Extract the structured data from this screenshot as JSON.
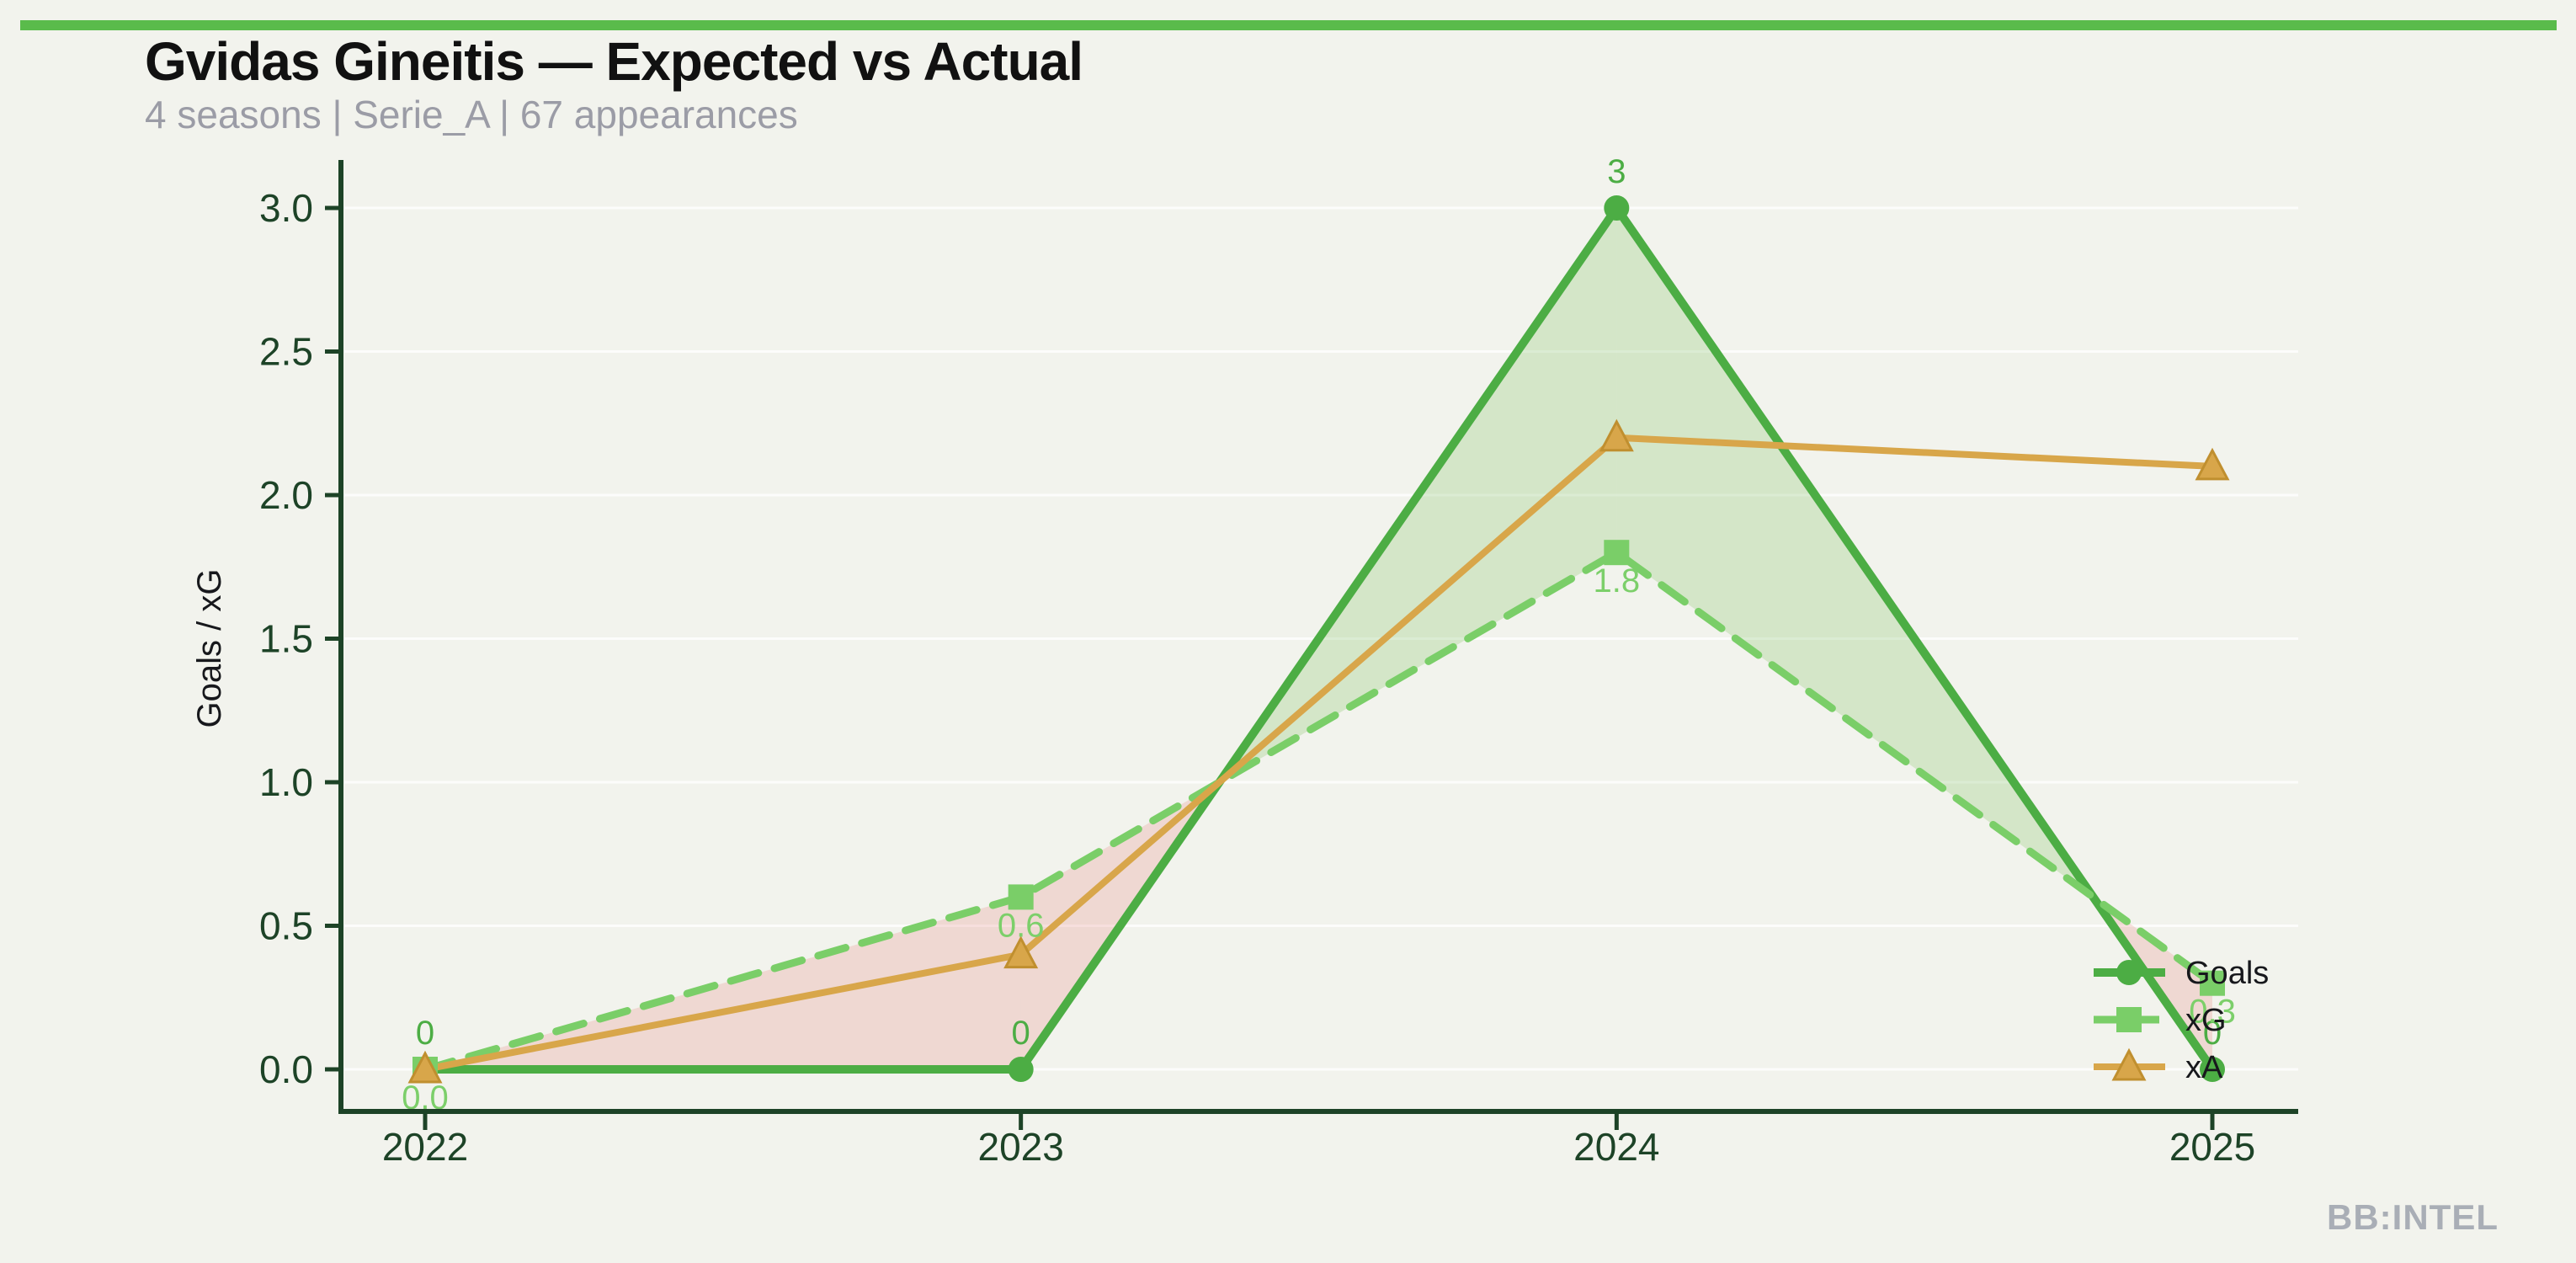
{
  "header": {
    "title": "Gvidas Gineitis — Expected vs Actual",
    "subtitle": "4 seasons | Serie_A | 67 appearances"
  },
  "watermark": "BB:INTEL",
  "colors": {
    "background": "#f2f3ed",
    "top_bar": "#5abb4b",
    "axis": "#1d4327",
    "tick_text": "#1d4327",
    "title_text": "#111111",
    "subtitle_text": "#9b9ca6",
    "watermark_text": "#a9aeb6",
    "gridline": "rgba(255,255,255,0.75)"
  },
  "chart_data": {
    "type": "line",
    "title": "Gvidas Gineitis — Expected vs Actual",
    "categories": [
      "2022",
      "2023",
      "2024",
      "2025"
    ],
    "series": [
      {
        "name": "Goals",
        "values": [
          0,
          0,
          3,
          0
        ],
        "labels": [
          "0",
          "0",
          "3",
          "0"
        ],
        "label_side": "above",
        "label_color": "#4cad44",
        "color": "#4cad44",
        "line": "solid",
        "width": 10,
        "marker": "circle"
      },
      {
        "name": "xG",
        "values": [
          0.0,
          0.6,
          1.8,
          0.3
        ],
        "labels": [
          "0.0",
          "0.6",
          "1.8",
          "0.3"
        ],
        "label_side": "below",
        "label_color": "#7ccf6a",
        "color": "#7ace68",
        "line": "dashed",
        "width": 9,
        "marker": "square"
      },
      {
        "name": "xA",
        "values": [
          0.0,
          0.4,
          2.2,
          2.1
        ],
        "labels": null,
        "label_side": null,
        "label_color": null,
        "color": "#d8a64a",
        "line": "solid",
        "width": 8,
        "marker": "triangle",
        "marker_edge": "#c08f2f"
      }
    ],
    "ylabel": "Goals / xG",
    "xlabel": "",
    "ylim": [
      0,
      3
    ],
    "yticks": [
      0.0,
      0.5,
      1.0,
      1.5,
      2.0,
      2.5,
      3.0
    ],
    "ytick_labels": [
      "0.0",
      "0.5",
      "1.0",
      "1.5",
      "2.0",
      "2.5",
      "3.0"
    ],
    "grid": "horizontal-faint",
    "legend_position": "lower right",
    "fill_between": {
      "series_a": "Goals",
      "series_b": "xG",
      "over_color": "rgba(118,190,85,0.24)",
      "under_color": "rgba(231,112,103,0.20)"
    }
  }
}
